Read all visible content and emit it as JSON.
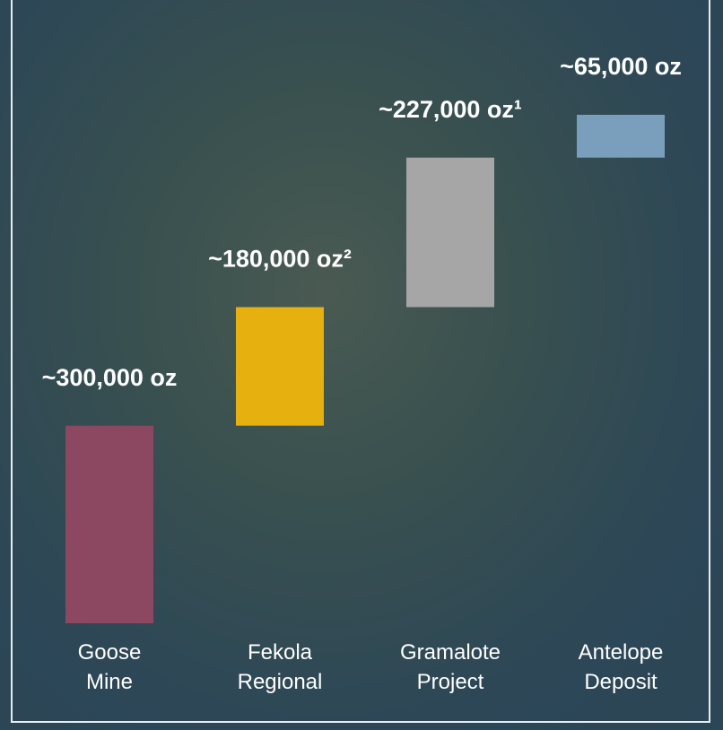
{
  "chart_data": {
    "type": "waterfall",
    "categories": [
      "Goose Mine",
      "Fekola Regional",
      "Gramalote Project",
      "Antelope Deposit"
    ],
    "values": [
      300000,
      180000,
      227000,
      65000
    ],
    "value_labels": [
      "~300,000 oz",
      "~180,000 oz²",
      "~227,000 oz¹",
      "~65,000 oz"
    ],
    "colors": [
      "#8b4860",
      "#e6b00e",
      "#a6a6a6",
      "#7a9fbd"
    ]
  }
}
